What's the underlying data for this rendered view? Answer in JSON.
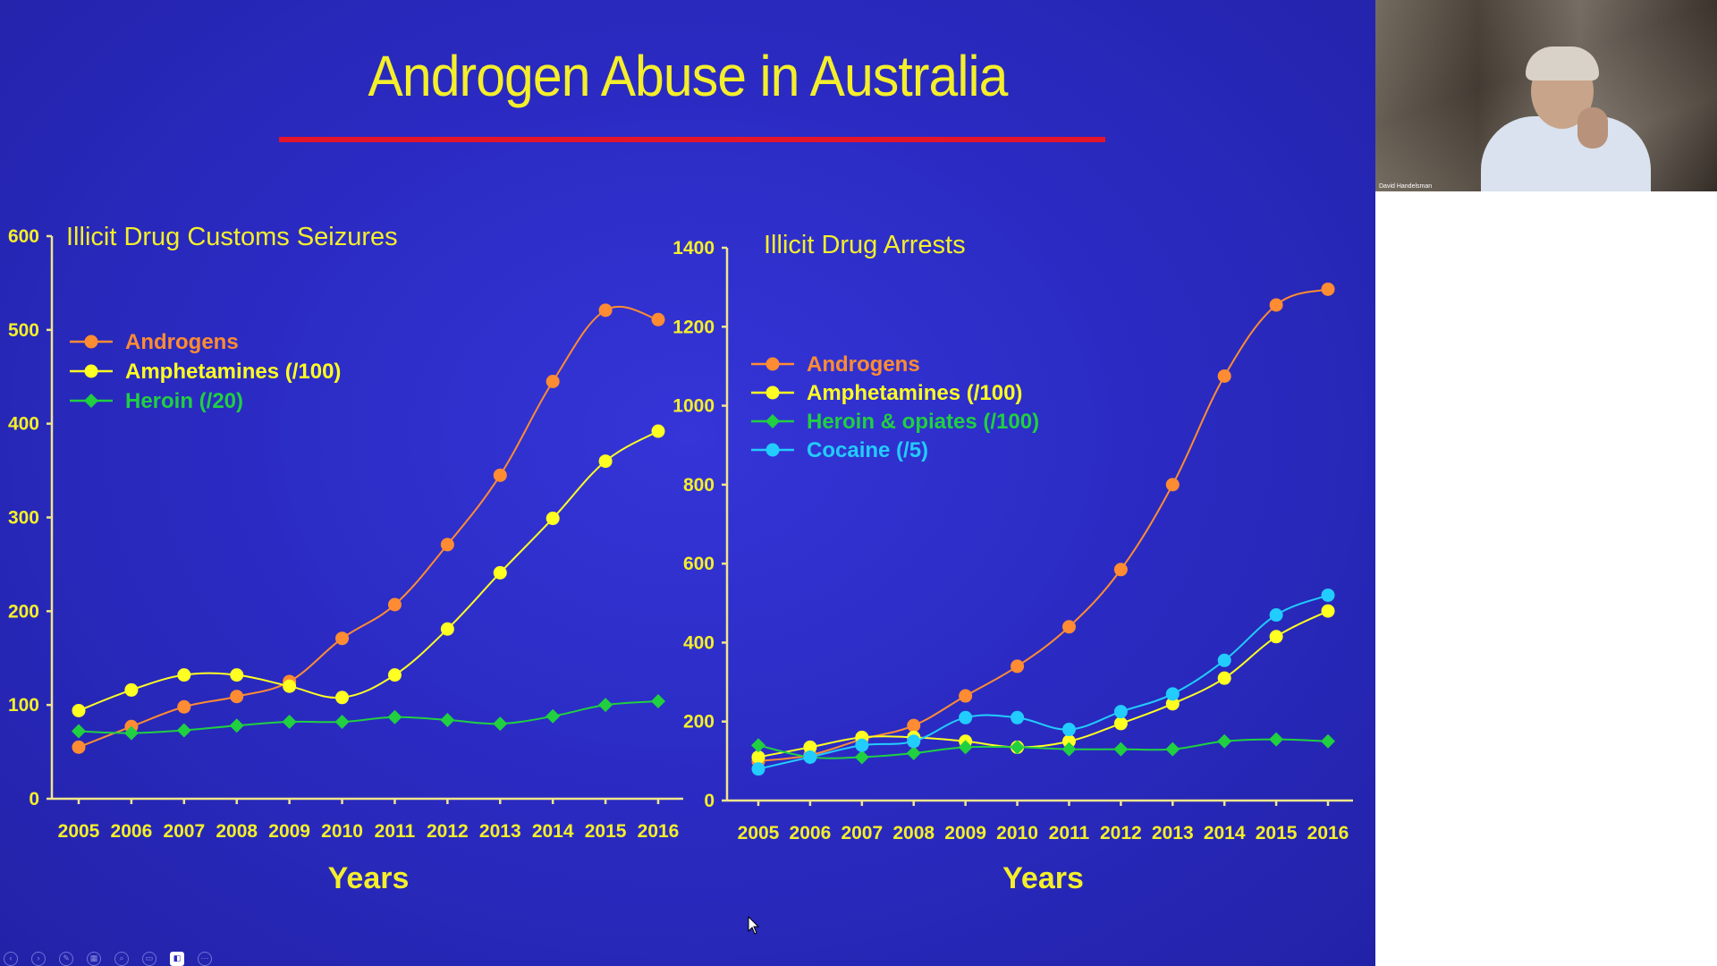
{
  "slide": {
    "title": "Androgen Abuse in Australia",
    "colors": {
      "background": "#2b2bc4",
      "title": "#f4ef2a",
      "rule": "#e4142a"
    }
  },
  "chart_data": [
    {
      "type": "line",
      "title": "Illicit Drug Customs Seizures",
      "xlabel": "Years",
      "ylabel": "",
      "x": [
        "2005",
        "2006",
        "2007",
        "2008",
        "2009",
        "2010",
        "2011",
        "2012",
        "2013",
        "2014",
        "2015",
        "2016"
      ],
      "ylim": [
        0,
        600
      ],
      "yticks": [
        0,
        100,
        200,
        300,
        400,
        500,
        600
      ],
      "grid": false,
      "legend_position": "top-left",
      "series": [
        {
          "name": "Androgens",
          "color": "#ff8c32",
          "marker": "circle",
          "values": [
            55,
            77,
            98,
            109,
            125,
            171,
            207,
            271,
            345,
            445,
            521,
            511
          ]
        },
        {
          "name": "Amphetamines (/100)",
          "color": "#ffff22",
          "marker": "circle",
          "values": [
            94,
            116,
            132,
            132,
            120,
            108,
            132,
            181,
            241,
            299,
            360,
            392
          ]
        },
        {
          "name": "Heroin (/20)",
          "color": "#20d040",
          "marker": "diamond",
          "values": [
            72,
            70,
            73,
            78,
            82,
            82,
            87,
            84,
            80,
            88,
            100,
            104
          ]
        }
      ]
    },
    {
      "type": "line",
      "title": "Illicit Drug Arrests",
      "xlabel": "Years",
      "ylabel": "",
      "x": [
        "2005",
        "2006",
        "2007",
        "2008",
        "2009",
        "2010",
        "2011",
        "2012",
        "2013",
        "2014",
        "2015",
        "2016"
      ],
      "ylim": [
        0,
        1400
      ],
      "yticks": [
        0,
        200,
        400,
        600,
        800,
        1000,
        1200,
        1400
      ],
      "grid": false,
      "legend_position": "top-left",
      "series": [
        {
          "name": "Androgens",
          "color": "#ff8c32",
          "marker": "circle",
          "values": [
            100,
            115,
            155,
            190,
            265,
            340,
            440,
            585,
            800,
            1075,
            1255,
            1295
          ]
        },
        {
          "name": "Amphetamines (/100)",
          "color": "#ffff22",
          "marker": "circle",
          "values": [
            110,
            135,
            160,
            160,
            150,
            135,
            150,
            195,
            245,
            310,
            415,
            480
          ]
        },
        {
          "name": "Heroin & opiates (/100)",
          "color": "#20d040",
          "marker": "diamond",
          "values": [
            140,
            110,
            110,
            120,
            135,
            135,
            130,
            130,
            130,
            150,
            155,
            150
          ]
        },
        {
          "name": "Cocaine (/5)",
          "color": "#22ccff",
          "marker": "circle",
          "values": [
            80,
            110,
            140,
            150,
            210,
            210,
            180,
            225,
            270,
            355,
            470,
            520
          ]
        }
      ]
    }
  ],
  "webcam": {
    "participant_name": "David Handelsman"
  },
  "presenter_controls": [
    {
      "icon": "previous-slide-icon",
      "glyph": "‹"
    },
    {
      "icon": "next-slide-icon",
      "glyph": "›"
    },
    {
      "icon": "pen-icon",
      "glyph": "✎"
    },
    {
      "icon": "slides-grid-icon",
      "glyph": "▦"
    },
    {
      "icon": "zoom-icon",
      "glyph": "⌕"
    },
    {
      "icon": "subtitles-icon",
      "glyph": "▭"
    },
    {
      "icon": "presenter-view-icon",
      "glyph": "◧"
    },
    {
      "icon": "more-options-icon",
      "glyph": "⋯"
    }
  ]
}
